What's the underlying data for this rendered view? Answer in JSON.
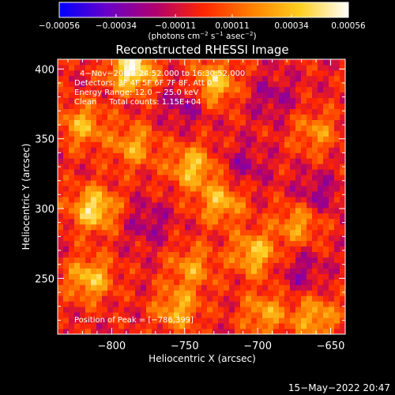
{
  "chart_data": {
    "type": "heatmap",
    "title": "Reconstructed RHESSI Image",
    "xlabel": "Heliocentric X (arcsec)",
    "ylabel": "Heliocentric Y (arcsec)",
    "xlim": [
      -837,
      -640
    ],
    "ylim": [
      210,
      407
    ],
    "x_ticks": [
      {
        "value": -800,
        "label": "−800"
      },
      {
        "value": -750,
        "label": "−750"
      },
      {
        "value": -700,
        "label": "−700"
      },
      {
        "value": -650,
        "label": "−650"
      }
    ],
    "y_ticks": [
      {
        "value": 250,
        "label": "250"
      },
      {
        "value": 300,
        "label": "300"
      },
      {
        "value": 350,
        "label": "350"
      },
      {
        "value": 400,
        "label": "400"
      }
    ],
    "colorbar": {
      "range": [
        -0.00056,
        0.00056
      ],
      "tick_values": [
        -0.00056,
        -0.00034,
        -0.00011,
        0.00011,
        0.00034,
        0.00056
      ],
      "tick_labels": [
        "−0.00056",
        "−0.00034",
        "−0.00011",
        "0.00011",
        "0.00034",
        "0.00056"
      ],
      "unit_text": "(photons cm",
      "unit_parts": [
        {
          "t": "(photons cm",
          "sup": false
        },
        {
          "t": "−2",
          "sup": true
        },
        {
          "t": " s",
          "sup": false
        },
        {
          "t": "−1",
          "sup": true
        },
        {
          "t": " asec",
          "sup": false
        },
        {
          "t": "−2",
          "sup": true
        },
        {
          "t": ")",
          "sup": false
        }
      ],
      "stops": [
        "#0000ff",
        "#6a00c8",
        "#b0006e",
        "#ff2600",
        "#ff8000",
        "#ffcf20",
        "#ffffff"
      ]
    },
    "annotations": [
      "4−Nov−20  16:24:52.000 to 16:30:52.000",
      "Detectors: 3F 4F 5F 6F 7F 8F, Att 0",
      "Energy Range: 12.0 − 25.0 keV",
      "Clean     Total counts: 1.15E+04"
    ],
    "peak_label": "Position of Peak = [−786,399]",
    "peak": [
      -786,
      399
    ],
    "hot_spots": [
      {
        "x": -786,
        "y": 399,
        "v": 1.0
      },
      {
        "x": -812,
        "y": 300,
        "v": 0.85
      },
      {
        "x": -820,
        "y": 360,
        "v": 0.6
      },
      {
        "x": -815,
        "y": 250,
        "v": 0.7
      },
      {
        "x": -730,
        "y": 390,
        "v": 0.75
      },
      {
        "x": -745,
        "y": 330,
        "v": 0.7
      },
      {
        "x": -725,
        "y": 305,
        "v": 0.65
      },
      {
        "x": -702,
        "y": 268,
        "v": 0.7
      },
      {
        "x": -672,
        "y": 290,
        "v": 0.55
      },
      {
        "x": -745,
        "y": 258,
        "v": 0.5
      },
      {
        "x": -695,
        "y": 225,
        "v": 0.55
      },
      {
        "x": -755,
        "y": 228,
        "v": 0.6
      },
      {
        "x": -660,
        "y": 222,
        "v": 0.6
      },
      {
        "x": -785,
        "y": 345,
        "v": 0.55
      },
      {
        "x": -660,
        "y": 355,
        "v": 0.45
      }
    ],
    "cold_spots": [
      {
        "x": -750,
        "y": 375,
        "v": -0.35
      },
      {
        "x": -690,
        "y": 380,
        "v": -0.3
      },
      {
        "x": -660,
        "y": 310,
        "v": -0.35
      },
      {
        "x": -775,
        "y": 290,
        "v": -0.3
      },
      {
        "x": -710,
        "y": 330,
        "v": -0.3
      },
      {
        "x": -670,
        "y": 255,
        "v": -0.3
      }
    ]
  },
  "footer": {
    "date": "15−May−2022 20:47"
  }
}
